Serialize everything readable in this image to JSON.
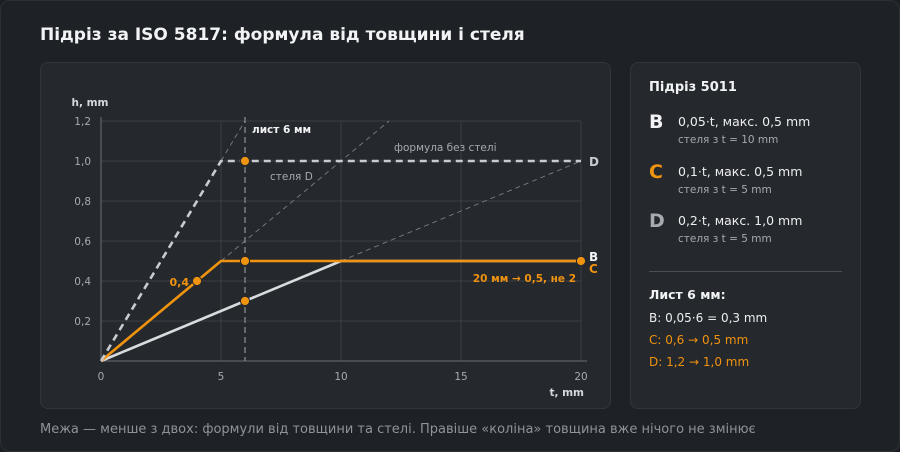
{
  "title": "Підріз за ISO 5817: формула від товщини і стеля",
  "colors": {
    "accent": "#f0930f",
    "line_b": "#d9dcdf",
    "line_d": "#c8cbcf",
    "grid": "#3b3f45",
    "text_muted": "#a6abb1"
  },
  "chart_data": {
    "type": "line",
    "xlabel": "t, mm",
    "ylabel": "h, mm",
    "xlim": [
      0,
      20
    ],
    "ylim": [
      0,
      1.2
    ],
    "x_ticks": [
      0,
      5,
      10,
      15,
      20
    ],
    "x_tick_labels": [
      "0",
      "5",
      "10",
      "15",
      "20"
    ],
    "y_ticks": [
      0.2,
      0.4,
      0.6,
      0.8,
      1.0,
      1.2
    ],
    "y_tick_labels": [
      "0,2",
      "0,4",
      "0,6",
      "0,8",
      "1,0",
      "1,2"
    ],
    "grid": true,
    "series": [
      {
        "name": "B",
        "color": "#d9dcdf",
        "dash": false,
        "points": [
          [
            0,
            0
          ],
          [
            10,
            0.5
          ],
          [
            20,
            0.5
          ]
        ]
      },
      {
        "name": "C",
        "color": "#f0930f",
        "dash": false,
        "points": [
          [
            0,
            0
          ],
          [
            5,
            0.5
          ],
          [
            20,
            0.5
          ]
        ]
      },
      {
        "name": "D",
        "color": "#c8cbcf",
        "dash": true,
        "points": [
          [
            0,
            0
          ],
          [
            5,
            1.0
          ],
          [
            20,
            1.0
          ]
        ]
      }
    ],
    "extension_lines": [
      {
        "name": "D-formula",
        "points": [
          [
            5,
            1.0
          ],
          [
            6,
            1.2
          ]
        ]
      },
      {
        "name": "C-formula",
        "points": [
          [
            5,
            0.5
          ],
          [
            12,
            1.2
          ]
        ]
      },
      {
        "name": "B-formula",
        "points": [
          [
            10,
            0.5
          ],
          [
            20,
            1.0
          ]
        ]
      }
    ],
    "markers": [
      {
        "x": 4,
        "y": 0.4
      },
      {
        "x": 6,
        "y": 0.3
      },
      {
        "x": 6,
        "y": 0.5
      },
      {
        "x": 6,
        "y": 1.0
      },
      {
        "x": 20,
        "y": 0.5
      }
    ],
    "vline": {
      "x": 6,
      "label": "лист 6 мм"
    },
    "annotations": {
      "formula_no_cap": "формула без стелі",
      "cap_d": "стеля D",
      "point_label": "0,4",
      "c_note": "20 мм → 0,5, не 2",
      "end_b": "B",
      "end_c": "C",
      "end_d": "D"
    }
  },
  "side": {
    "title": "Підріз 5011",
    "classes": [
      {
        "letter": "B",
        "formula": "0,05·t, макс. 0,5 mm",
        "cap": "стеля з t = 10 mm",
        "color": "#f1f3f4"
      },
      {
        "letter": "C",
        "formula": "0,1·t, макс. 0,5 mm",
        "cap": "стеля з t = 5 mm",
        "color": "#f0930f"
      },
      {
        "letter": "D",
        "formula": "0,2·t, макс. 1,0 mm",
        "cap": "стеля з t = 5 mm",
        "color": "#a6abb1"
      }
    ],
    "sheet": {
      "title": "Лист 6 мм:",
      "lines": [
        {
          "text": "B: 0,05·6 = 0,3 mm",
          "color": "#eceef0"
        },
        {
          "text": "C: 0,6 → 0,5 mm",
          "color": "#f0930f"
        },
        {
          "text": "D: 1,2 → 1,0 mm",
          "color": "#f0930f"
        }
      ]
    }
  },
  "footer": "Межа — менше з двох: формули від товщини та стелі. Правіше «коліна» товщина вже нічого не змінює"
}
